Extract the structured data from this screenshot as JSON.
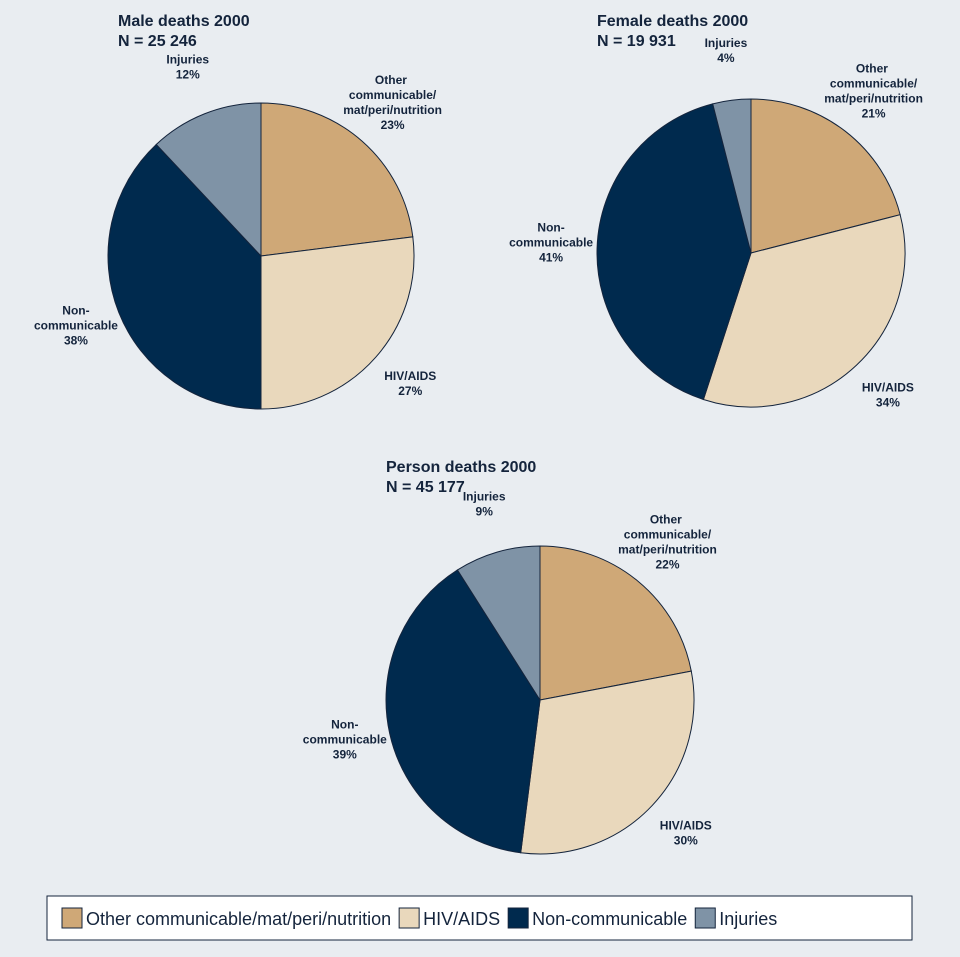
{
  "chart_data": [
    {
      "type": "pie",
      "title": "Male deaths 2000",
      "subtitle": "N = 25 246",
      "categories": [
        "Other communicable/mat/peri/nutrition",
        "HIV/AIDS",
        "Non-communicable",
        "Injuries"
      ],
      "values": [
        23,
        27,
        38,
        12
      ],
      "value_labels": [
        "23%",
        "27%",
        "38%",
        "12%"
      ],
      "colors": [
        "#cfa877",
        "#e9d8bc",
        "#002a4e",
        "#7f93a6"
      ]
    },
    {
      "type": "pie",
      "title": "Female deaths 2000",
      "subtitle": "N = 19 931",
      "categories": [
        "Other communicable/mat/peri/nutrition",
        "HIV/AIDS",
        "Non-communicable",
        "Injuries"
      ],
      "values": [
        21,
        34,
        41,
        4
      ],
      "value_labels": [
        "21%",
        "34%",
        "41%",
        "4%"
      ],
      "colors": [
        "#cfa877",
        "#e9d8bc",
        "#002a4e",
        "#7f93a6"
      ]
    },
    {
      "type": "pie",
      "title": "Person deaths 2000",
      "subtitle": "N = 45 177",
      "categories": [
        "Other communicable/mat/peri/nutrition",
        "HIV/AIDS",
        "Non-communicable",
        "Injuries"
      ],
      "values": [
        22,
        30,
        39,
        9
      ],
      "value_labels": [
        "22%",
        "30%",
        "39%",
        "9%"
      ],
      "colors": [
        "#cfa877",
        "#e9d8bc",
        "#002a4e",
        "#7f93a6"
      ]
    }
  ]
}
